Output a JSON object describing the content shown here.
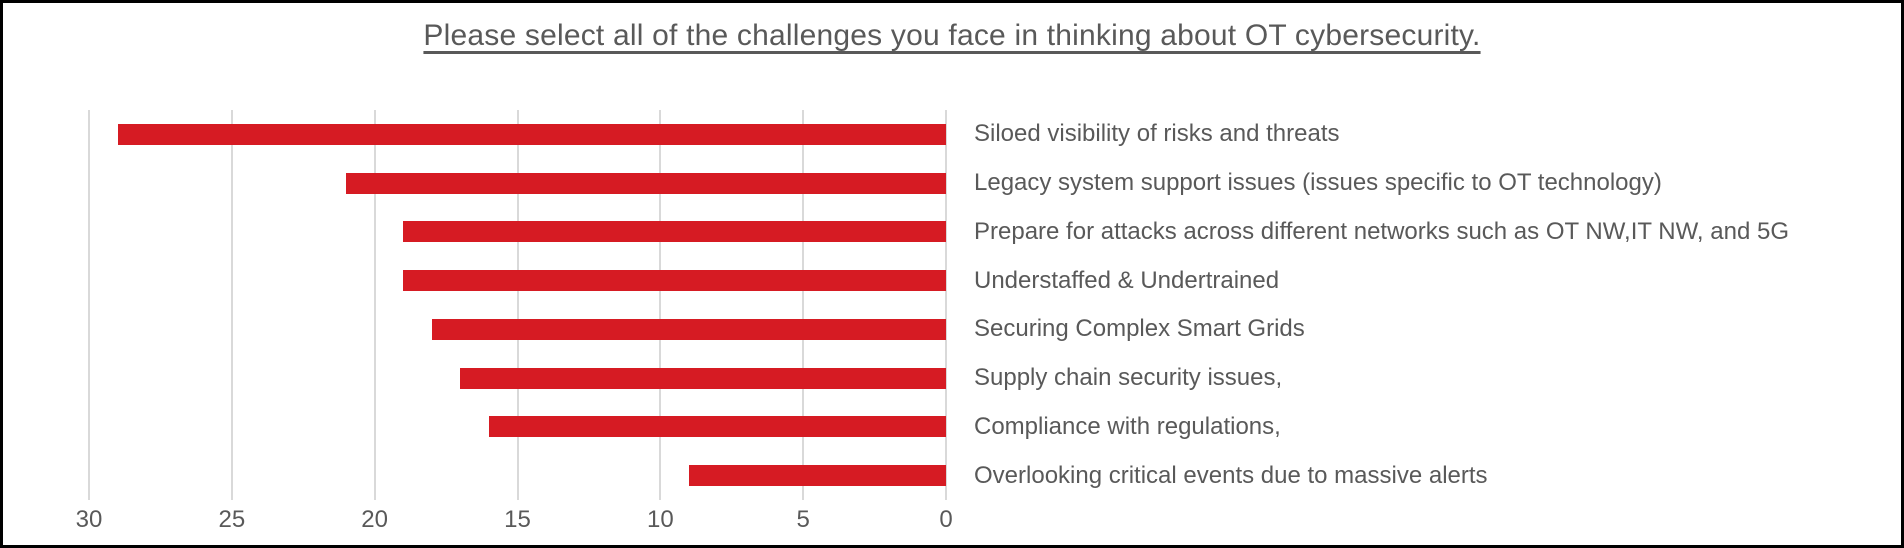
{
  "chart_data": {
    "type": "bar",
    "orientation": "horizontal",
    "axis_reversed": true,
    "title": "Please select all of the challenges you face in thinking about OT cybersecurity.",
    "categories": [
      "Siloed visibility of risks and threats",
      "Legacy system support issues (issues specific to OT technology)",
      "Prepare for attacks across different networks such as OT NW,IT NW, and 5G",
      "Understaffed & Undertrained",
      "Securing Complex Smart Grids",
      "Supply chain security issues,",
      "Compliance with regulations,",
      "Overlooking critical events due to massive alerts"
    ],
    "values": [
      29,
      21,
      19,
      19,
      18,
      17,
      16,
      9
    ],
    "xlabel": "",
    "ylabel": "",
    "x_ticks": [
      30,
      25,
      20,
      15,
      10,
      5,
      0
    ],
    "xlim": [
      0,
      30
    ],
    "grid": true,
    "legend": false,
    "colors": {
      "bar": "#d61b23",
      "gridline": "#d9d9d9",
      "text": "#595959",
      "frame_border": "#000000"
    }
  }
}
